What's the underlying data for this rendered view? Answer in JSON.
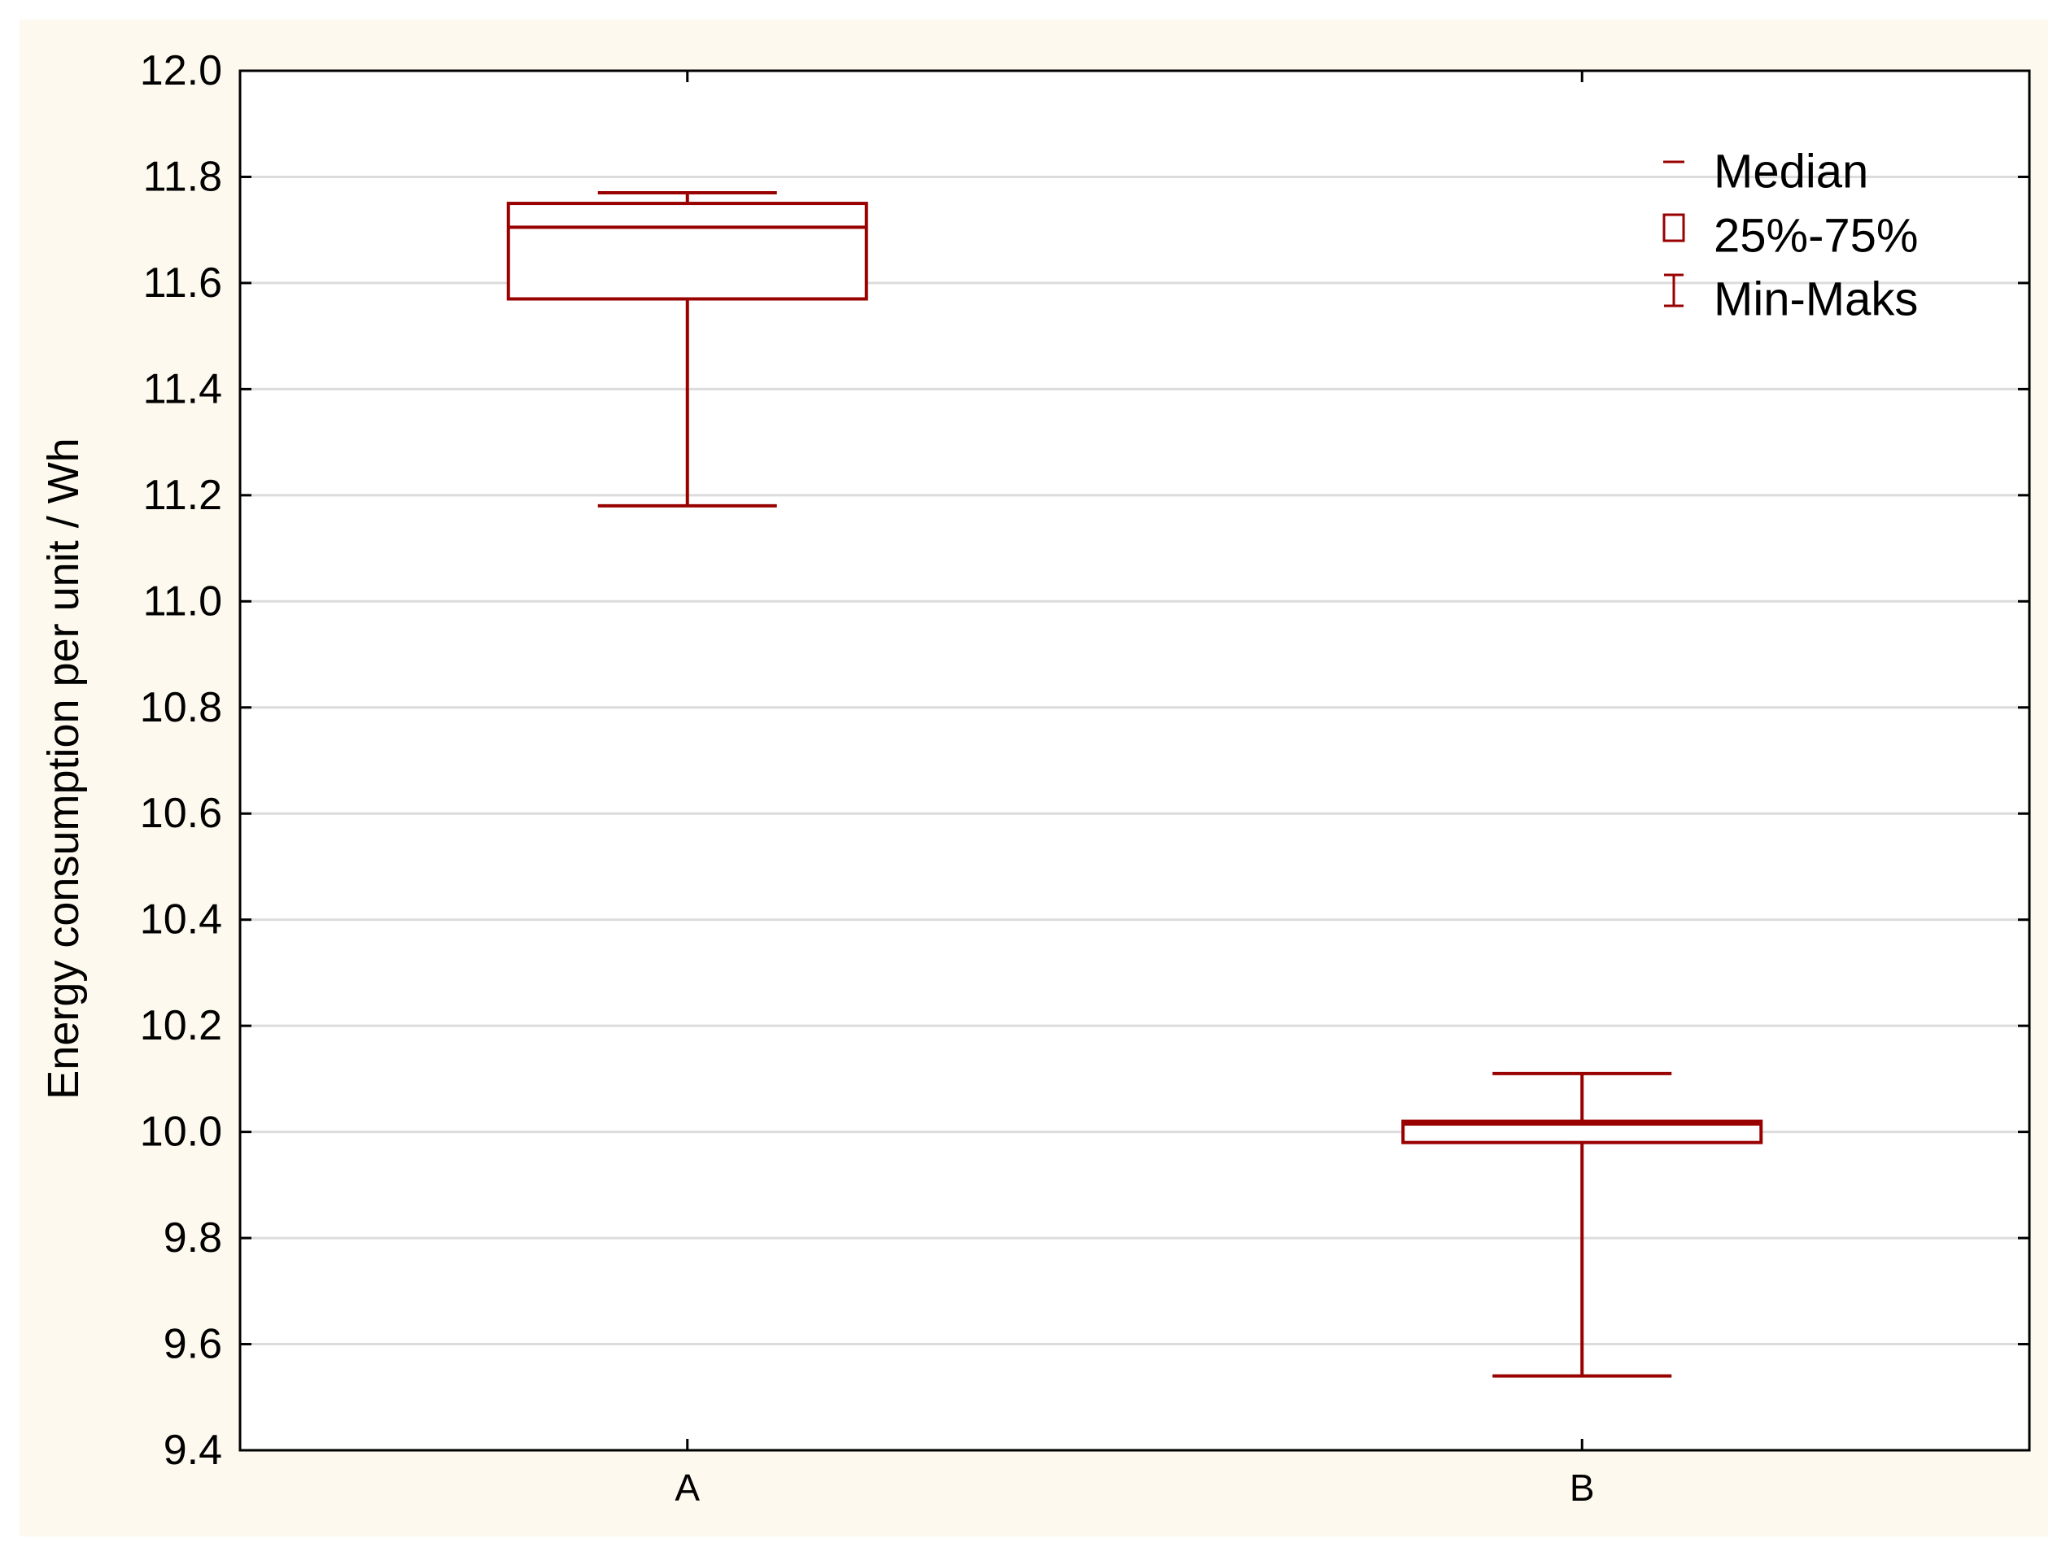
{
  "chart_data": {
    "type": "box",
    "title": "",
    "xlabel": "",
    "ylabel": "Energy consumption per unit / Wh",
    "ylim": [
      9.4,
      12.0
    ],
    "y_ticks": [
      "9.4",
      "9.6",
      "9.8",
      "10.0",
      "10.2",
      "10.4",
      "10.6",
      "10.8",
      "11.0",
      "11.2",
      "11.4",
      "11.6",
      "11.8",
      "12.0"
    ],
    "grid": "horizontal",
    "legend_position": "top-right",
    "categories": [
      "A",
      "B"
    ],
    "boxes": [
      {
        "category": "A",
        "min": 11.18,
        "q1": 11.57,
        "median": 11.705,
        "q3": 11.75,
        "max": 11.77
      },
      {
        "category": "B",
        "min": 9.54,
        "q1": 9.98,
        "median": 10.015,
        "q3": 10.02,
        "max": 10.11
      }
    ],
    "legend": [
      {
        "symbol": "median",
        "label": "Median"
      },
      {
        "symbol": "box",
        "label": "25%-75%"
      },
      {
        "symbol": "whisker",
        "label": "Min-Maks"
      }
    ],
    "colors": {
      "box": "#990000",
      "grid": "#dcdcdc",
      "figure_background": "#fdf9ee",
      "plot_background": "#ffffff",
      "axes": "#000000"
    }
  }
}
